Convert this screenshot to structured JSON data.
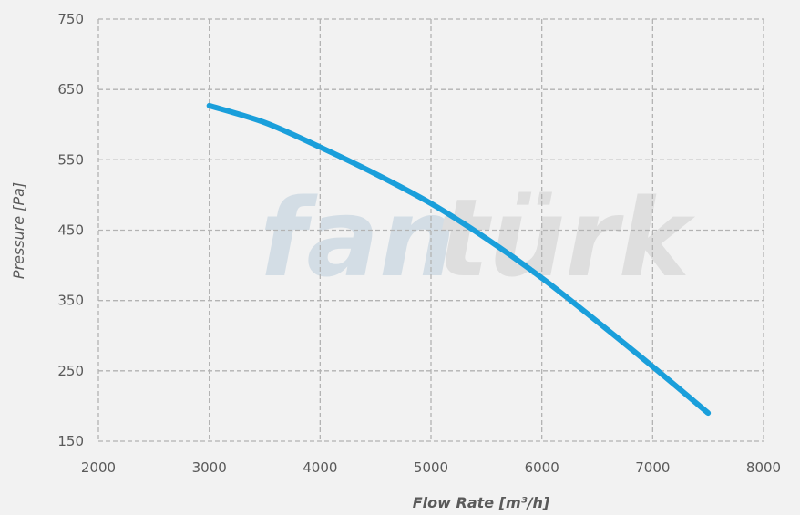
{
  "watermark": {
    "part1": "fan",
    "part2": "türk"
  },
  "colors": {
    "curve": "#1a9fdb",
    "grid": "#b3b3b3",
    "background": "#f2f2f2"
  },
  "chart_data": {
    "type": "line",
    "title": "",
    "xlabel": "Flow Rate [m³/h]",
    "ylabel": "Pressure [Pa]",
    "xlim": [
      2000,
      8000
    ],
    "ylim": [
      150,
      750
    ],
    "xticks": [
      2000,
      3000,
      4000,
      5000,
      6000,
      7000,
      8000
    ],
    "yticks": [
      150,
      250,
      350,
      450,
      550,
      650,
      750
    ],
    "grid": true,
    "legend": "none",
    "series": [
      {
        "x": [
          3000,
          3500,
          4000,
          4500,
          5000,
          5500,
          6000,
          6500,
          7000,
          7500
        ],
        "y": [
          627,
          603,
          568,
          530,
          488,
          438,
          382,
          320,
          256,
          190
        ]
      }
    ]
  }
}
